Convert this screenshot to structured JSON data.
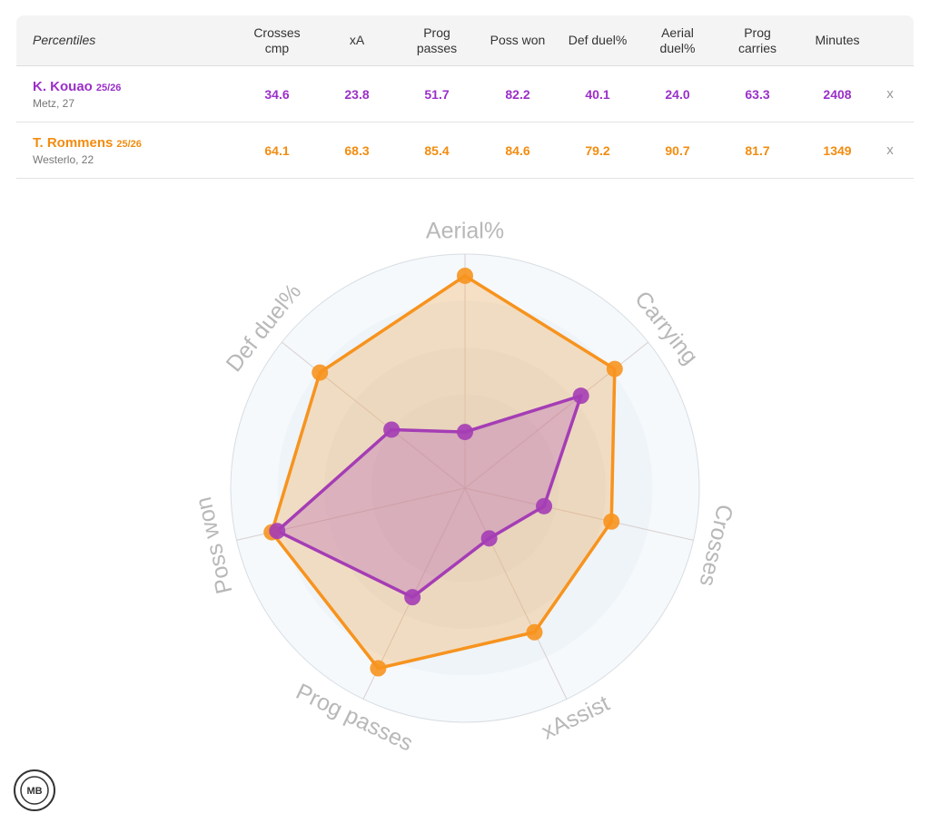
{
  "table": {
    "header": [
      "Percentiles",
      "Crosses\ncmp",
      "xA",
      "Prog\npasses",
      "Poss won",
      "Def duel%",
      "Aerial\nduel%",
      "Prog\ncarries",
      "Minutes"
    ],
    "rows": [
      {
        "name": "K. Kouao",
        "season": "25/26",
        "info": "Metz, 27",
        "color": "#9b2fc9",
        "cells": [
          "34.6",
          "23.8",
          "51.7",
          "82.2",
          "40.1",
          "24.0",
          "63.3",
          "2408"
        ],
        "remove": "x"
      },
      {
        "name": "T. Rommens",
        "season": "25/26",
        "info": "Westerlo, 22",
        "color": "#f28c10",
        "cells": [
          "64.1",
          "68.3",
          "85.4",
          "84.6",
          "79.2",
          "90.7",
          "81.7",
          "1349"
        ],
        "remove": "x"
      }
    ]
  },
  "chart_data": {
    "type": "radar",
    "categories": [
      "Aerial%",
      "Carrying",
      "Crosses",
      "xAssist",
      "Prog passes",
      "Poss won",
      "Def duel%"
    ],
    "rlim": [
      0,
      100
    ],
    "series": [
      {
        "name": "T. Rommens",
        "color": "#f7931e",
        "values": [
          90.7,
          81.7,
          64.1,
          68.3,
          85.4,
          84.6,
          79.2
        ]
      },
      {
        "name": "K. Kouao",
        "color": "#a53db5",
        "values": [
          24.0,
          63.3,
          34.6,
          23.8,
          51.7,
          82.2,
          40.1
        ]
      }
    ]
  },
  "logo": {
    "text": "MB"
  }
}
